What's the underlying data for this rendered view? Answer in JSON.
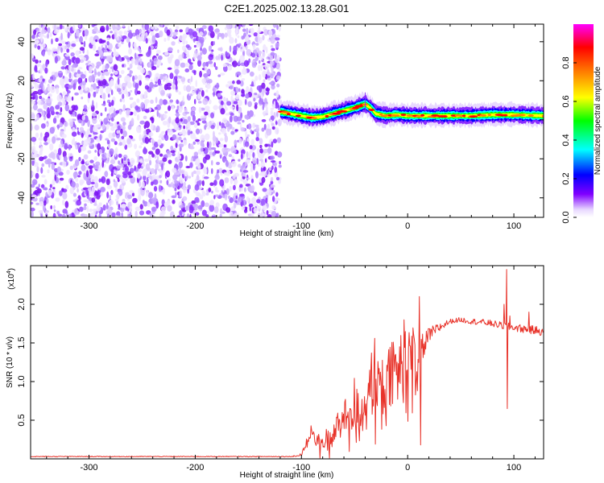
{
  "title": "C2E1.2025.002.13.28.G01",
  "top_panel": {
    "xlabel": "Height of straight line (km)",
    "ylabel": "Frequency (Hz)",
    "colorbar_label": "Normalized spectral amplitude"
  },
  "bottom_panel": {
    "xlabel": "Height of straight line (km)",
    "ylabel": "SNR (10 * v/v)",
    "scale_note_base": "(x10",
    "scale_note_exp": "4",
    "scale_note_end": ")"
  },
  "chart_data": [
    {
      "type": "heatmap",
      "title": "C2E1.2025.002.13.28.G01",
      "xlabel": "Height of straight line (km)",
      "ylabel": "Frequency (Hz)",
      "xlim": [
        -355,
        128
      ],
      "ylim": [
        -50,
        49
      ],
      "xticks": [
        -300,
        -200,
        -100,
        0,
        100
      ],
      "yticks": [
        -40,
        -20,
        0,
        20,
        40
      ],
      "grid": false,
      "colorbar": {
        "label": "Normalized spectral amplitude",
        "range": [
          0,
          1
        ],
        "ticks": [
          0.0,
          0.2,
          0.4,
          0.6,
          0.8
        ],
        "colors": [
          "#ffffff",
          "#e0c8ff",
          "#8000ff",
          "#0000ff",
          "#00ffff",
          "#00ff00",
          "#ffff00",
          "#ff8000",
          "#ff0000",
          "#ff00ff"
        ]
      },
      "noise_region_x": [
        -355,
        -120
      ],
      "signal_ridge": {
        "x": [
          -120,
          -110,
          -100,
          -90,
          -80,
          -70,
          -60,
          -50,
          -40,
          -35,
          -30,
          -20,
          -10,
          0,
          20,
          40,
          60,
          80,
          100,
          128
        ],
        "y": [
          4,
          3,
          2,
          1,
          1.5,
          3,
          4.5,
          6,
          8,
          6,
          3,
          2,
          2.5,
          2,
          2,
          2,
          2,
          2.5,
          2.5,
          2
        ],
        "peak_amplitude": 1.0
      }
    },
    {
      "type": "line",
      "xlabel": "Height of straight line (km)",
      "ylabel": "SNR (10 * v/v)",
      "y_multiplier": 10000,
      "xlim": [
        -355,
        128
      ],
      "ylim": [
        0,
        2.5
      ],
      "xticks": [
        -300,
        -200,
        -100,
        0,
        100
      ],
      "yticks": [
        0.5,
        1.0,
        1.5,
        2.0
      ],
      "grid": false,
      "color": "#e8332a",
      "envelope": {
        "x": [
          -355,
          -110,
          -100,
          -95,
          -90,
          -85,
          -80,
          -70,
          -60,
          -50,
          -40,
          -30,
          -20,
          -10,
          0,
          10,
          20,
          30,
          40,
          50,
          60,
          70,
          80,
          90,
          100,
          110,
          128
        ],
        "y": [
          0.03,
          0.03,
          0.05,
          0.22,
          0.35,
          0.15,
          0.2,
          0.35,
          0.5,
          0.6,
          0.75,
          0.9,
          1.0,
          1.1,
          1.25,
          1.4,
          1.6,
          1.7,
          1.78,
          1.8,
          1.78,
          1.77,
          1.75,
          1.72,
          1.7,
          1.68,
          1.65
        ]
      },
      "noise_amplitude": {
        "x": [
          -355,
          -110,
          -100,
          -85,
          -70,
          -40,
          -10,
          10,
          20,
          40,
          128
        ],
        "y": [
          0.005,
          0.005,
          0.02,
          0.1,
          0.2,
          0.35,
          0.5,
          0.4,
          0.1,
          0.03,
          0.06
        ]
      },
      "spikes": [
        {
          "x": 11,
          "y": 2.1
        },
        {
          "x": 12,
          "y": 0.18
        },
        {
          "x": 93,
          "y": 2.45
        },
        {
          "x": 93.6,
          "y": 0.65
        },
        {
          "x": 91,
          "y": 2.0
        },
        {
          "x": 96,
          "y": 1.85
        },
        {
          "x": 114,
          "y": 1.9
        }
      ]
    }
  ]
}
